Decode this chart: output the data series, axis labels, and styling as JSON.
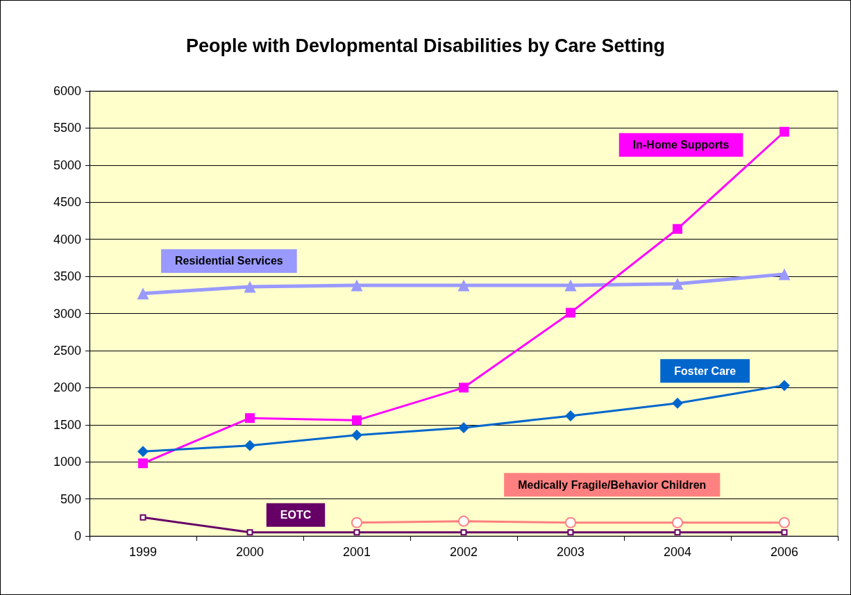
{
  "chart_data": {
    "type": "line",
    "title": "People with Devlopmental Disabilities by Care Setting",
    "categories": [
      "1999",
      "2000",
      "2001",
      "2002",
      "2003",
      "2004",
      "2006"
    ],
    "series": [
      {
        "name": "Residential Services",
        "color": "#9999ff",
        "marker": "triangle",
        "values": [
          3270,
          3360,
          3380,
          3380,
          3380,
          3400,
          3530
        ]
      },
      {
        "name": "In-Home Supports",
        "color": "#ff00ff",
        "marker": "square",
        "values": [
          980,
          1590,
          1560,
          2000,
          3010,
          4140,
          5450
        ]
      },
      {
        "name": "Foster Care",
        "color": "#0066cc",
        "marker": "diamond",
        "values": [
          1140,
          1220,
          1360,
          1460,
          1620,
          1790,
          2030
        ]
      },
      {
        "name": "Medically Fragile/Behavior Children",
        "color": "#ff8080",
        "marker": "circle",
        "values": [
          null,
          null,
          180,
          200,
          180,
          180,
          180
        ]
      },
      {
        "name": "EOTC",
        "color": "#660066",
        "marker": "square",
        "values": [
          250,
          50,
          50,
          50,
          50,
          50,
          50
        ]
      }
    ],
    "ylim": [
      0,
      6000
    ],
    "yticks": [
      0,
      500,
      1000,
      1500,
      2000,
      2500,
      3000,
      3500,
      4000,
      4500,
      5000,
      5500,
      6000
    ],
    "grid": "y",
    "line_style": "solid"
  }
}
